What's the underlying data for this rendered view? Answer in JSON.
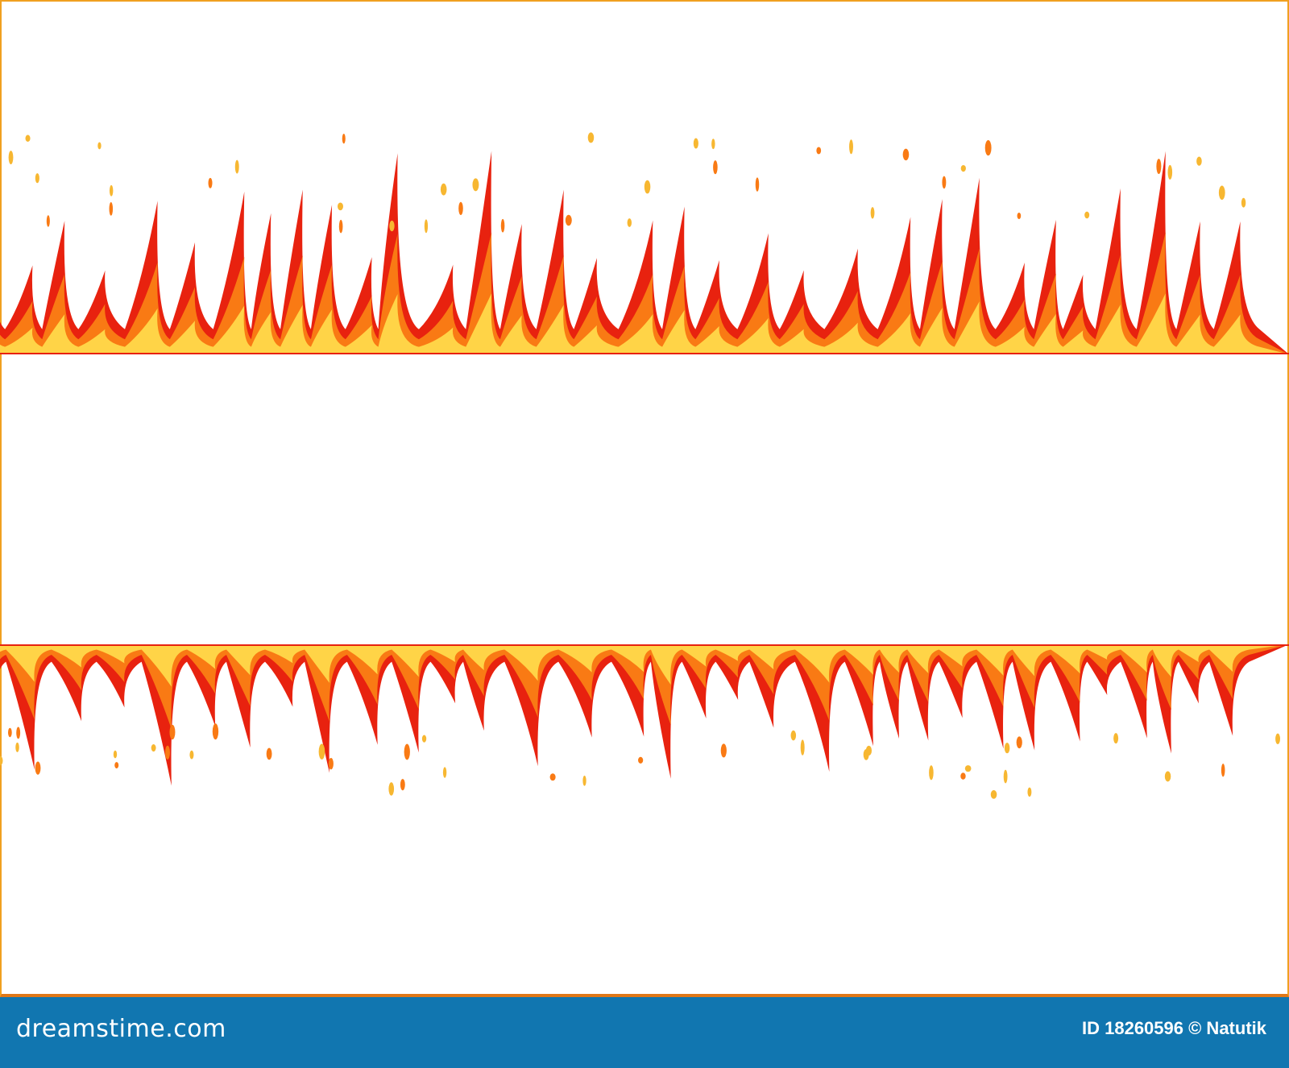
{
  "footer": {
    "logo_text": "dreamstime.com",
    "credit": "ID 18260596 © Natutik"
  },
  "colors": {
    "flame_outer": "#e8220f",
    "flame_mid": "#f97a14",
    "flame_inner": "#ffd447",
    "frame": "#f0a020",
    "footer_bg": "#1176b0"
  }
}
